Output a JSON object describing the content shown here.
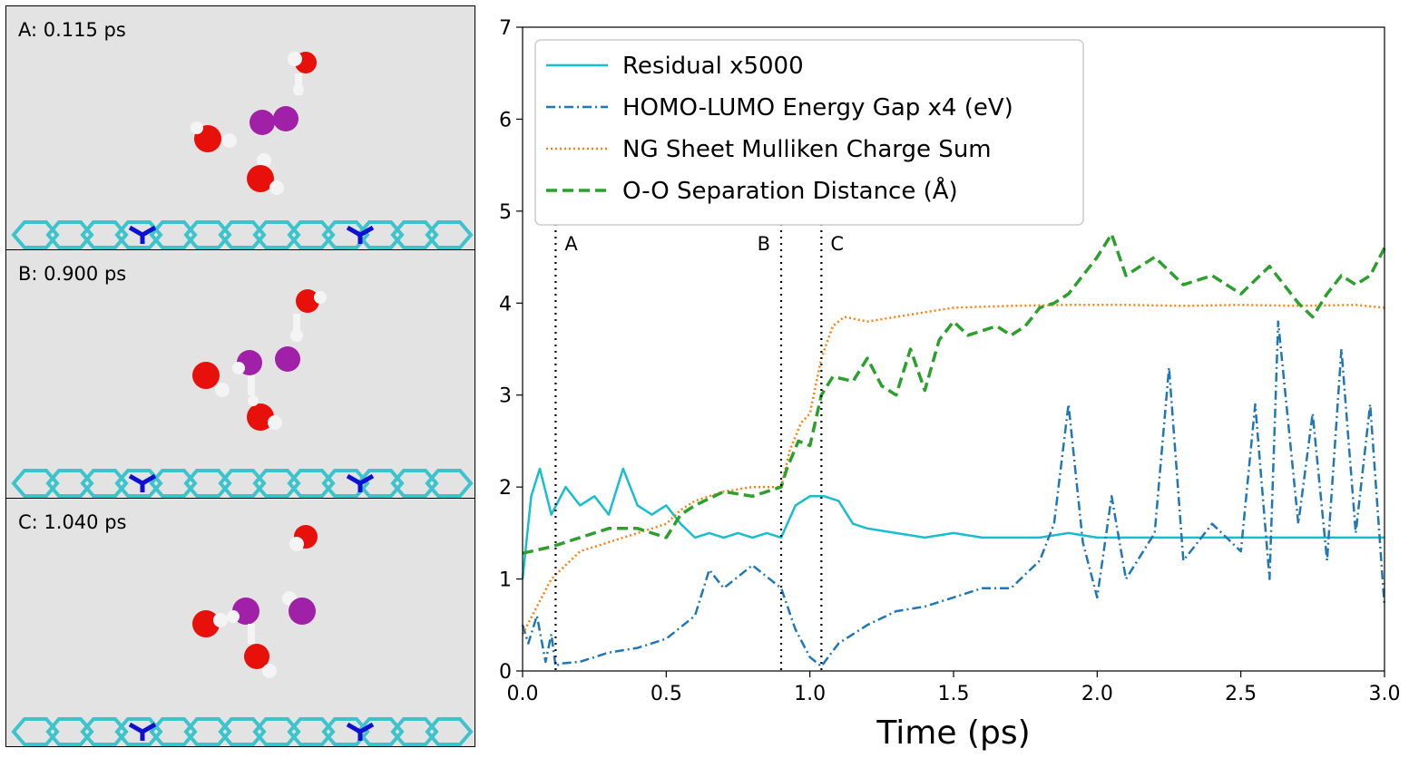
{
  "panels": [
    {
      "label": "A: 0.115 ps"
    },
    {
      "label": "B: 0.900 ps"
    },
    {
      "label": "C: 1.040 ps"
    }
  ],
  "colors": {
    "residual": "#17becf",
    "gap": "#1f77b4",
    "charge": "#ff7f0e",
    "oo": "#2ca02c",
    "oxygen": "#e8100a",
    "hydrogen": "#f2f2f2",
    "iodine": "#a020a8",
    "carbon": "#3cc4cc",
    "nitrogen": "#1010d0",
    "panel_bg": "#e3e3e3"
  },
  "chart_data": {
    "type": "line",
    "xlabel": "Time (ps)",
    "ylabel": "",
    "xlim": [
      0.0,
      3.0
    ],
    "ylim": [
      0,
      7
    ],
    "xticks": [
      0.0,
      0.5,
      1.0,
      1.5,
      2.0,
      2.5,
      3.0
    ],
    "xtick_labels": [
      "0.0",
      "0.5",
      "1.0",
      "1.5",
      "2.0",
      "2.5",
      "3.0"
    ],
    "yticks": [
      0,
      1,
      2,
      3,
      4,
      5,
      6,
      7
    ],
    "ytick_labels": [
      "0",
      "1",
      "2",
      "3",
      "4",
      "5",
      "6",
      "7"
    ],
    "legend_position": "top-left",
    "markers": [
      {
        "label": "A",
        "x": 0.115
      },
      {
        "label": "B",
        "x": 0.9
      },
      {
        "label": "C",
        "x": 1.04
      }
    ],
    "series": [
      {
        "name": "Residual x5000",
        "style": "solid",
        "x": [
          0.0,
          0.03,
          0.06,
          0.1,
          0.15,
          0.2,
          0.25,
          0.3,
          0.35,
          0.4,
          0.45,
          0.5,
          0.55,
          0.6,
          0.65,
          0.7,
          0.75,
          0.8,
          0.85,
          0.9,
          0.95,
          1.0,
          1.05,
          1.1,
          1.15,
          1.2,
          1.3,
          1.4,
          1.5,
          1.6,
          1.7,
          1.8,
          1.9,
          2.0,
          2.2,
          2.4,
          2.6,
          2.8,
          3.0
        ],
        "y": [
          1.0,
          1.9,
          2.2,
          1.7,
          2.0,
          1.8,
          1.9,
          1.7,
          2.2,
          1.8,
          1.7,
          1.8,
          1.6,
          1.45,
          1.5,
          1.45,
          1.5,
          1.45,
          1.5,
          1.45,
          1.8,
          1.9,
          1.9,
          1.85,
          1.6,
          1.55,
          1.5,
          1.45,
          1.5,
          1.45,
          1.45,
          1.45,
          1.5,
          1.45,
          1.45,
          1.45,
          1.45,
          1.45,
          1.45
        ]
      },
      {
        "name": "HOMO-LUMO Energy Gap x4 (eV)",
        "style": "dashdot",
        "x": [
          0.0,
          0.02,
          0.05,
          0.08,
          0.1,
          0.115,
          0.13,
          0.2,
          0.3,
          0.4,
          0.5,
          0.6,
          0.65,
          0.7,
          0.8,
          0.9,
          0.95,
          1.0,
          1.04,
          1.1,
          1.2,
          1.3,
          1.4,
          1.5,
          1.6,
          1.7,
          1.8,
          1.85,
          1.9,
          1.95,
          2.0,
          2.05,
          2.1,
          2.2,
          2.25,
          2.3,
          2.4,
          2.5,
          2.55,
          2.6,
          2.63,
          2.7,
          2.75,
          2.8,
          2.85,
          2.9,
          2.95,
          3.0
        ],
        "y": [
          0.5,
          0.3,
          0.6,
          0.1,
          0.4,
          0.05,
          0.08,
          0.1,
          0.2,
          0.25,
          0.35,
          0.6,
          1.1,
          0.9,
          1.15,
          0.9,
          0.45,
          0.15,
          0.05,
          0.3,
          0.5,
          0.65,
          0.7,
          0.8,
          0.9,
          0.9,
          1.2,
          1.6,
          2.9,
          1.4,
          0.8,
          1.9,
          1.0,
          1.5,
          3.3,
          1.2,
          1.6,
          1.3,
          2.9,
          1.0,
          3.8,
          1.6,
          2.8,
          1.2,
          3.5,
          1.5,
          2.9,
          0.7
        ]
      },
      {
        "name": "NG Sheet Mulliken Charge Sum",
        "style": "dotted",
        "x": [
          0.0,
          0.05,
          0.1,
          0.2,
          0.3,
          0.4,
          0.5,
          0.55,
          0.6,
          0.65,
          0.7,
          0.8,
          0.9,
          0.93,
          0.97,
          1.0,
          1.04,
          1.08,
          1.12,
          1.2,
          1.3,
          1.4,
          1.5,
          1.7,
          1.9,
          2.1,
          2.3,
          2.5,
          2.7,
          2.9,
          3.0
        ],
        "y": [
          0.4,
          0.7,
          1.0,
          1.3,
          1.4,
          1.5,
          1.6,
          1.75,
          1.85,
          1.9,
          1.95,
          2.0,
          2.0,
          2.4,
          2.7,
          2.8,
          3.4,
          3.75,
          3.85,
          3.8,
          3.85,
          3.9,
          3.95,
          3.97,
          3.98,
          3.98,
          3.97,
          3.98,
          3.97,
          3.98,
          3.95
        ]
      },
      {
        "name": "O-O Separation Distance (Å)",
        "style": "dashed",
        "x": [
          0.0,
          0.1,
          0.2,
          0.3,
          0.4,
          0.5,
          0.55,
          0.6,
          0.7,
          0.8,
          0.9,
          0.92,
          0.96,
          1.0,
          1.04,
          1.08,
          1.15,
          1.2,
          1.25,
          1.3,
          1.35,
          1.4,
          1.45,
          1.5,
          1.55,
          1.6,
          1.65,
          1.7,
          1.75,
          1.8,
          1.85,
          1.9,
          1.95,
          2.0,
          2.05,
          2.1,
          2.15,
          2.2,
          2.3,
          2.4,
          2.5,
          2.6,
          2.65,
          2.7,
          2.75,
          2.8,
          2.85,
          2.9,
          2.95,
          3.0
        ],
        "y": [
          1.28,
          1.35,
          1.45,
          1.55,
          1.55,
          1.45,
          1.7,
          1.8,
          1.95,
          1.9,
          2.0,
          2.2,
          2.5,
          2.45,
          3.0,
          3.2,
          3.15,
          3.4,
          3.1,
          3.0,
          3.5,
          3.05,
          3.6,
          3.8,
          3.65,
          3.7,
          3.75,
          3.65,
          3.75,
          3.95,
          4.0,
          4.1,
          4.3,
          4.5,
          4.75,
          4.3,
          4.4,
          4.5,
          4.2,
          4.3,
          4.1,
          4.4,
          4.2,
          4.0,
          3.85,
          4.1,
          4.3,
          4.2,
          4.3,
          4.6
        ]
      }
    ]
  }
}
